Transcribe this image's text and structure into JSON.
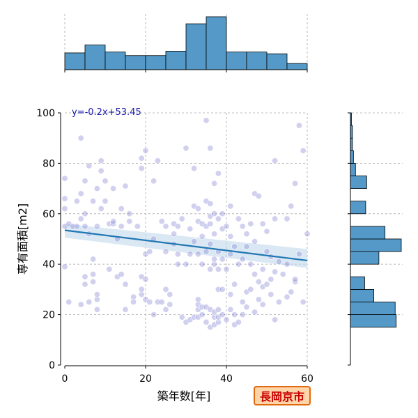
{
  "badge": {
    "text": "長岡京市",
    "border_color": "#e06a10",
    "background": "#ffd4a8",
    "text_color": "#c80000"
  },
  "chart_data": {
    "type": "scatter",
    "xlabel": "築年数[年]",
    "ylabel": "専有面積[m2]",
    "xlim": [
      0,
      60
    ],
    "ylim": [
      0,
      100
    ],
    "xticks": [
      0,
      20,
      40,
      60
    ],
    "yticks": [
      0,
      20,
      40,
      60,
      80,
      100
    ],
    "grid": true,
    "point_color": "#7a7ad0",
    "regression": {
      "label": "y=-0.2x+53.45",
      "slope": -0.2,
      "intercept": 53.45,
      "color": "#1f77b4",
      "ci_color": "#bcd6ea",
      "ci_lower_at_xmax": 38.5,
      "ci_upper_at_xmax": 46,
      "ci_lower_at_xmin": 50.5,
      "ci_upper_at_xmin": 56
    },
    "marginal_x_hist": {
      "bins": [
        0,
        5,
        10,
        15,
        20,
        25,
        30,
        35,
        40,
        45,
        50,
        55,
        60
      ],
      "counts": [
        19,
        28,
        20,
        16,
        16,
        21,
        52,
        60,
        20,
        20,
        18,
        7
      ],
      "color": "#5499c7"
    },
    "marginal_y_hist": {
      "bins": [
        15,
        20,
        25,
        30,
        35,
        40,
        45,
        50,
        55,
        60,
        65,
        70,
        75,
        80,
        85,
        90,
        95,
        100
      ],
      "counts": [
        45,
        44,
        23,
        14,
        0,
        28,
        50,
        34,
        0,
        15,
        0,
        16,
        5,
        3,
        2,
        2,
        1
      ],
      "color": "#5499c7"
    },
    "points": [
      [
        0,
        39
      ],
      [
        0,
        55
      ],
      [
        0,
        62
      ],
      [
        0,
        66
      ],
      [
        0,
        74
      ],
      [
        1,
        25
      ],
      [
        1,
        56
      ],
      [
        2,
        55
      ],
      [
        3,
        55
      ],
      [
        3,
        65
      ],
      [
        4,
        58
      ],
      [
        4,
        68
      ],
      [
        4,
        90
      ],
      [
        4,
        24
      ],
      [
        5,
        32
      ],
      [
        5,
        35
      ],
      [
        5,
        55
      ],
      [
        5,
        60
      ],
      [
        5,
        73
      ],
      [
        6,
        79
      ],
      [
        6,
        52
      ],
      [
        6,
        25
      ],
      [
        7,
        33
      ],
      [
        7,
        36
      ],
      [
        7,
        42
      ],
      [
        7,
        65
      ],
      [
        8,
        26
      ],
      [
        8,
        28
      ],
      [
        8,
        22
      ],
      [
        8,
        55
      ],
      [
        8,
        70
      ],
      [
        9,
        62
      ],
      [
        9,
        77
      ],
      [
        9,
        81
      ],
      [
        10,
        65
      ],
      [
        10,
        73
      ],
      [
        11,
        38
      ],
      [
        11,
        56
      ],
      [
        12,
        56
      ],
      [
        12,
        57
      ],
      [
        12,
        70
      ],
      [
        13,
        35
      ],
      [
        13,
        50
      ],
      [
        14,
        36
      ],
      [
        14,
        55
      ],
      [
        14,
        62
      ],
      [
        15,
        71
      ],
      [
        15,
        22
      ],
      [
        15,
        32
      ],
      [
        16,
        60
      ],
      [
        16,
        57
      ],
      [
        17,
        27
      ],
      [
        17,
        25
      ],
      [
        18,
        55
      ],
      [
        19,
        28
      ],
      [
        19,
        30
      ],
      [
        19,
        35
      ],
      [
        19,
        78
      ],
      [
        19,
        82
      ],
      [
        20,
        26
      ],
      [
        20,
        34
      ],
      [
        20,
        44
      ],
      [
        20,
        85
      ],
      [
        21,
        25
      ],
      [
        21,
        45
      ],
      [
        22,
        20
      ],
      [
        22,
        73
      ],
      [
        22,
        50
      ],
      [
        23,
        25
      ],
      [
        23,
        81
      ],
      [
        24,
        25
      ],
      [
        24,
        57
      ],
      [
        25,
        22
      ],
      [
        25,
        30
      ],
      [
        25,
        45
      ],
      [
        25,
        55
      ],
      [
        26,
        24
      ],
      [
        26,
        28
      ],
      [
        27,
        48
      ],
      [
        27,
        52
      ],
      [
        27,
        56
      ],
      [
        28,
        40
      ],
      [
        28,
        44
      ],
      [
        28,
        55
      ],
      [
        29,
        19
      ],
      [
        29,
        58
      ],
      [
        30,
        17
      ],
      [
        30,
        40
      ],
      [
        30,
        86
      ],
      [
        31,
        18
      ],
      [
        31,
        44
      ],
      [
        31,
        54
      ],
      [
        32,
        19
      ],
      [
        32,
        49
      ],
      [
        32,
        63
      ],
      [
        32,
        78
      ],
      [
        33,
        19
      ],
      [
        33,
        22
      ],
      [
        33,
        24
      ],
      [
        33,
        26
      ],
      [
        33,
        44
      ],
      [
        33,
        57
      ],
      [
        33,
        62
      ],
      [
        34,
        20
      ],
      [
        34,
        23
      ],
      [
        34,
        40
      ],
      [
        34,
        51
      ],
      [
        34,
        56
      ],
      [
        35,
        17
      ],
      [
        35,
        23
      ],
      [
        35,
        45
      ],
      [
        35,
        55
      ],
      [
        35,
        65
      ],
      [
        35,
        97
      ],
      [
        36,
        15
      ],
      [
        36,
        22
      ],
      [
        36,
        38
      ],
      [
        36,
        48
      ],
      [
        36,
        56
      ],
      [
        36,
        59
      ],
      [
        36,
        64
      ],
      [
        36,
        86
      ],
      [
        37,
        16
      ],
      [
        37,
        19
      ],
      [
        37,
        21
      ],
      [
        37,
        40
      ],
      [
        37,
        42
      ],
      [
        37,
        52
      ],
      [
        37,
        60
      ],
      [
        37,
        72
      ],
      [
        38,
        17
      ],
      [
        38,
        19
      ],
      [
        38,
        22
      ],
      [
        38,
        38
      ],
      [
        38,
        30
      ],
      [
        38,
        45
      ],
      [
        38,
        58
      ],
      [
        38,
        76
      ],
      [
        39,
        20
      ],
      [
        39,
        30
      ],
      [
        39,
        42
      ],
      [
        39,
        54
      ],
      [
        39,
        60
      ],
      [
        40,
        18
      ],
      [
        40,
        38
      ],
      [
        40,
        55
      ],
      [
        41,
        22
      ],
      [
        41,
        28
      ],
      [
        41,
        44
      ],
      [
        41,
        51
      ],
      [
        41,
        63
      ],
      [
        42,
        16
      ],
      [
        42,
        20
      ],
      [
        42,
        32
      ],
      [
        42,
        47
      ],
      [
        43,
        17
      ],
      [
        43,
        40
      ],
      [
        43,
        58
      ],
      [
        44,
        20
      ],
      [
        44,
        25
      ],
      [
        44,
        42
      ],
      [
        44,
        55
      ],
      [
        45,
        23
      ],
      [
        45,
        29
      ],
      [
        45,
        47
      ],
      [
        45,
        52
      ],
      [
        46,
        30
      ],
      [
        46,
        40
      ],
      [
        46,
        56
      ],
      [
        47,
        21
      ],
      [
        47,
        36
      ],
      [
        47,
        68
      ],
      [
        47,
        49
      ],
      [
        48,
        26
      ],
      [
        48,
        33
      ],
      [
        48,
        67
      ],
      [
        49,
        24
      ],
      [
        49,
        31
      ],
      [
        49,
        38
      ],
      [
        49,
        56
      ],
      [
        50,
        32
      ],
      [
        50,
        45
      ],
      [
        50,
        53
      ],
      [
        51,
        28
      ],
      [
        51,
        34
      ],
      [
        51,
        43
      ],
      [
        52,
        18
      ],
      [
        52,
        37
      ],
      [
        52,
        58
      ],
      [
        52,
        81
      ],
      [
        53,
        25
      ],
      [
        53,
        41
      ],
      [
        54,
        36
      ],
      [
        55,
        40
      ],
      [
        55,
        58
      ],
      [
        55,
        27
      ],
      [
        56,
        29
      ],
      [
        56,
        63
      ],
      [
        57,
        33
      ],
      [
        57,
        34
      ],
      [
        57,
        72
      ],
      [
        58,
        95
      ],
      [
        58,
        44
      ],
      [
        59,
        25
      ],
      [
        59,
        85
      ],
      [
        60,
        52
      ]
    ]
  }
}
